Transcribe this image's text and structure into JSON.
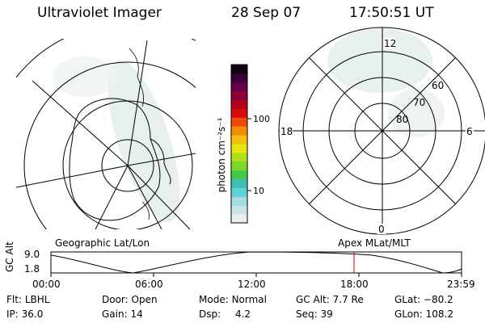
{
  "header": {
    "instrument": "Ultraviolet Imager",
    "date": "28 Sep 07",
    "time": "17:50:51 UT"
  },
  "left_panel": {
    "caption": "Geographic Lat/Lon"
  },
  "right_panel": {
    "caption": "Apex MLat/MLT",
    "mlt_labels": [
      "12",
      "18",
      "6",
      "0"
    ],
    "mlat_labels": [
      "60",
      "70",
      "80"
    ]
  },
  "colorbar": {
    "unit_label": "photon cm⁻²s⁻¹",
    "ticks": [
      "100",
      "10"
    ],
    "colors": [
      "#e6eef0",
      "#c8e6ea",
      "#a6dde0",
      "#5ed0d6",
      "#3cc0b0",
      "#46c846",
      "#7ad62a",
      "#aee01c",
      "#e6e614",
      "#f2c00a",
      "#f28c0a",
      "#f04a0a",
      "#d80a0a",
      "#b00020",
      "#8c0038",
      "#66004c",
      "#3a003a",
      "#100010"
    ]
  },
  "chart_data": {
    "type": "line",
    "ylabel": "GC Alt",
    "y_ticks": [
      "9.0",
      "1.8"
    ],
    "x_ticks": [
      "00:00",
      "06:00",
      "12:00",
      "18:00",
      "23:59"
    ],
    "current_marker": "17:50:51"
  },
  "info": {
    "row1": [
      {
        "key": "Flt:",
        "value": "LBHL"
      },
      {
        "key": "Door:",
        "value": "Open"
      },
      {
        "key": "Mode:",
        "value": "Normal"
      },
      {
        "key": "GC Alt:",
        "value": "7.7 Re"
      },
      {
        "key": "GLat:",
        "value": "−80.2"
      }
    ],
    "row2": [
      {
        "key": "IP:",
        "value": "36.0"
      },
      {
        "key": "Gain:",
        "value": "14"
      },
      {
        "key": "Dsp:",
        "value": "4.2"
      },
      {
        "key": "Seq:",
        "value": "39"
      },
      {
        "key": "GLon:",
        "value": "108.2"
      }
    ]
  }
}
